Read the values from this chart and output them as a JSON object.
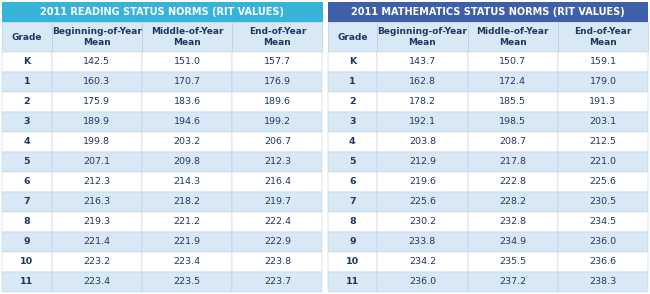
{
  "reading_title": "2011 READING STATUS NORMS (RIT VALUES)",
  "math_title": "2011 MATHEMATICS STATUS NORMS (RIT VALUES)",
  "col_headers": [
    "Grade",
    "Beginning-of-Year\nMean",
    "Middle-of-Year\nMean",
    "End-of-Year\nMean"
  ],
  "reading_data": [
    [
      "K",
      "142.5",
      "151.0",
      "157.7"
    ],
    [
      "1",
      "160.3",
      "170.7",
      "176.9"
    ],
    [
      "2",
      "175.9",
      "183.6",
      "189.6"
    ],
    [
      "3",
      "189.9",
      "194.6",
      "199.2"
    ],
    [
      "4",
      "199.8",
      "203.2",
      "206.7"
    ],
    [
      "5",
      "207.1",
      "209.8",
      "212.3"
    ],
    [
      "6",
      "212.3",
      "214.3",
      "216.4"
    ],
    [
      "7",
      "216.3",
      "218.2",
      "219.7"
    ],
    [
      "8",
      "219.3",
      "221.2",
      "222.4"
    ],
    [
      "9",
      "221.4",
      "221.9",
      "222.9"
    ],
    [
      "10",
      "223.2",
      "223.4",
      "223.8"
    ],
    [
      "11",
      "223.4",
      "223.5",
      "223.7"
    ]
  ],
  "math_data": [
    [
      "K",
      "143.7",
      "150.7",
      "159.1"
    ],
    [
      "1",
      "162.8",
      "172.4",
      "179.0"
    ],
    [
      "2",
      "178.2",
      "185.5",
      "191.3"
    ],
    [
      "3",
      "192.1",
      "198.5",
      "203.1"
    ],
    [
      "4",
      "203.8",
      "208.7",
      "212.5"
    ],
    [
      "5",
      "212.9",
      "217.8",
      "221.0"
    ],
    [
      "6",
      "219.6",
      "222.8",
      "225.6"
    ],
    [
      "7",
      "225.6",
      "228.2",
      "230.5"
    ],
    [
      "8",
      "230.2",
      "232.8",
      "234.5"
    ],
    [
      "9",
      "233.8",
      "234.9",
      "236.0"
    ],
    [
      "10",
      "234.2",
      "235.5",
      "236.6"
    ],
    [
      "11",
      "236.0",
      "237.2",
      "238.3"
    ]
  ],
  "header_bg_reading": "#36b3d9",
  "header_bg_math": "#3f5fa8",
  "col_header_bg": "#d9e8f5",
  "row_even_bg": "#ffffff",
  "row_odd_bg": "#d9e8f5",
  "header_text_color": "#ffffff",
  "col_header_text_color": "#1f3864",
  "data_text_color": "#1f3864",
  "border_color": "#b0c8e0",
  "gap_color": "#ffffff",
  "title_fontsize": 7.0,
  "header_fontsize": 6.5,
  "data_fontsize": 6.8
}
